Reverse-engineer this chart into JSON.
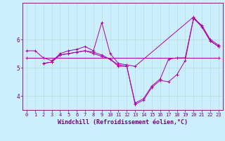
{
  "xlabel": "Windchill (Refroidissement éolien,°C)",
  "bg_color": "#cceeff",
  "line_color": "#aa00aa",
  "grid_color": "#aaddcc",
  "axis_color": "#770077",
  "xlim": [
    -0.5,
    23.5
  ],
  "ylim": [
    3.5,
    7.3
  ],
  "yticks": [
    4,
    5,
    6
  ],
  "xticks": [
    0,
    1,
    2,
    3,
    4,
    5,
    6,
    7,
    8,
    9,
    10,
    11,
    12,
    13,
    14,
    15,
    16,
    17,
    18,
    19,
    20,
    21,
    22,
    23
  ],
  "lines": [
    {
      "x": [
        0,
        1,
        2,
        3,
        4,
        5,
        6,
        7,
        8,
        9,
        10,
        11,
        12,
        13,
        14,
        15,
        16,
        17,
        18,
        19,
        20,
        21,
        22,
        23
      ],
      "y": [
        5.6,
        5.6,
        5.35,
        5.25,
        5.45,
        5.5,
        5.55,
        5.6,
        5.55,
        5.45,
        5.3,
        5.1,
        5.05,
        3.7,
        3.85,
        4.3,
        4.55,
        4.5,
        4.75,
        5.25,
        6.75,
        6.5,
        6.0,
        5.8
      ]
    },
    {
      "x": [
        2,
        3,
        4,
        5,
        6,
        7,
        8,
        9,
        10,
        11,
        12,
        13,
        20,
        21,
        22,
        23
      ],
      "y": [
        5.15,
        5.2,
        5.5,
        5.6,
        5.65,
        5.75,
        5.6,
        6.6,
        5.5,
        5.15,
        5.1,
        5.05,
        6.8,
        6.45,
        5.95,
        5.75
      ]
    },
    {
      "x": [
        0,
        23
      ],
      "y": [
        5.35,
        5.35
      ]
    },
    {
      "x": [
        2,
        3,
        4,
        5,
        6,
        7,
        8,
        9,
        10,
        11,
        12,
        13,
        14,
        15,
        16,
        17,
        18,
        19,
        20,
        21,
        22,
        23
      ],
      "y": [
        5.15,
        5.2,
        5.45,
        5.5,
        5.55,
        5.6,
        5.5,
        5.4,
        5.3,
        5.05,
        5.05,
        3.75,
        3.9,
        4.35,
        4.6,
        5.3,
        5.35,
        5.35,
        6.75,
        6.45,
        5.95,
        5.75
      ]
    }
  ],
  "font_size": 6,
  "tick_font_size": 5.5,
  "marker": "+",
  "marker_size": 3,
  "line_width": 0.7
}
